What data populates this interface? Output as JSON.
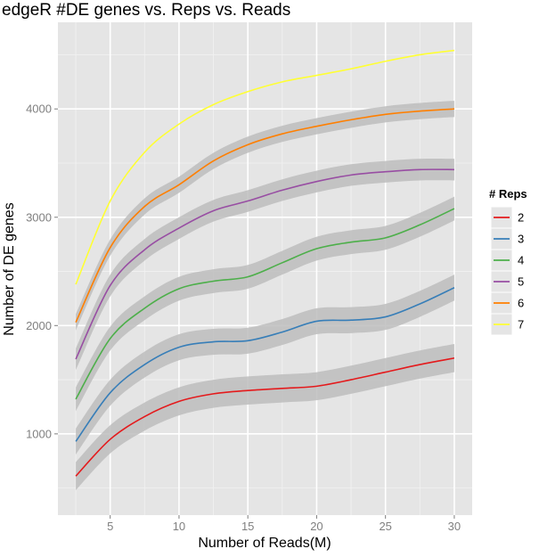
{
  "chart_data": {
    "type": "line",
    "title": "edgeR #DE genes vs. Reps vs. Reads",
    "xlabel": "Number of Reads(M)",
    "ylabel": "Number of DE genes",
    "xlim": [
      1.2,
      31.3
    ],
    "ylim": [
      250,
      4800
    ],
    "x_ticks": [
      5,
      10,
      15,
      20,
      25,
      30
    ],
    "y_ticks": [
      1000,
      2000,
      3000,
      4000
    ],
    "grid": true,
    "background": "#e5e5e5",
    "confidence_band_color": "#bdbdbd",
    "legend": {
      "title": "# Reps",
      "placement": "right"
    },
    "series": [
      {
        "name": "2",
        "color": "#e41a1c",
        "band": 130,
        "x": [
          2.5,
          5,
          7.5,
          10,
          12.5,
          15,
          17.5,
          20,
          22.5,
          25,
          27.5,
          30
        ],
        "y": [
          610,
          950,
          1160,
          1300,
          1370,
          1400,
          1420,
          1440,
          1500,
          1570,
          1640,
          1700
        ]
      },
      {
        "name": "3",
        "color": "#377eb8",
        "band": 120,
        "x": [
          2.5,
          5,
          7.5,
          10,
          12.5,
          15,
          17.5,
          20,
          22.5,
          25,
          27.5,
          30
        ],
        "y": [
          930,
          1380,
          1640,
          1800,
          1850,
          1860,
          1940,
          2040,
          2050,
          2080,
          2200,
          2350
        ]
      },
      {
        "name": "4",
        "color": "#4daf4a",
        "band": 110,
        "x": [
          2.5,
          5,
          7.5,
          10,
          12.5,
          15,
          17.5,
          20,
          22.5,
          25,
          27.5,
          30
        ],
        "y": [
          1320,
          1880,
          2160,
          2340,
          2410,
          2450,
          2580,
          2710,
          2770,
          2810,
          2930,
          3080
        ]
      },
      {
        "name": "5",
        "color": "#984ea3",
        "band": 100,
        "x": [
          2.5,
          5,
          7.5,
          10,
          12.5,
          15,
          17.5,
          20,
          22.5,
          25,
          27.5,
          30
        ],
        "y": [
          1690,
          2370,
          2700,
          2900,
          3060,
          3150,
          3250,
          3330,
          3390,
          3420,
          3440,
          3440
        ]
      },
      {
        "name": "6",
        "color": "#ff7f00",
        "band": 75,
        "x": [
          2.5,
          5,
          7.5,
          10,
          12.5,
          15,
          17.5,
          20,
          22.5,
          25,
          27.5,
          30
        ],
        "y": [
          2030,
          2720,
          3100,
          3300,
          3520,
          3670,
          3770,
          3840,
          3900,
          3950,
          3980,
          4000
        ]
      },
      {
        "name": "7",
        "color": "#ffff33",
        "band": 0,
        "x": [
          2.5,
          5,
          7.5,
          10,
          12.5,
          15,
          17.5,
          20,
          22.5,
          25,
          27.5,
          30
        ],
        "y": [
          2380,
          3150,
          3600,
          3860,
          4040,
          4160,
          4250,
          4310,
          4370,
          4440,
          4500,
          4540
        ]
      }
    ]
  }
}
